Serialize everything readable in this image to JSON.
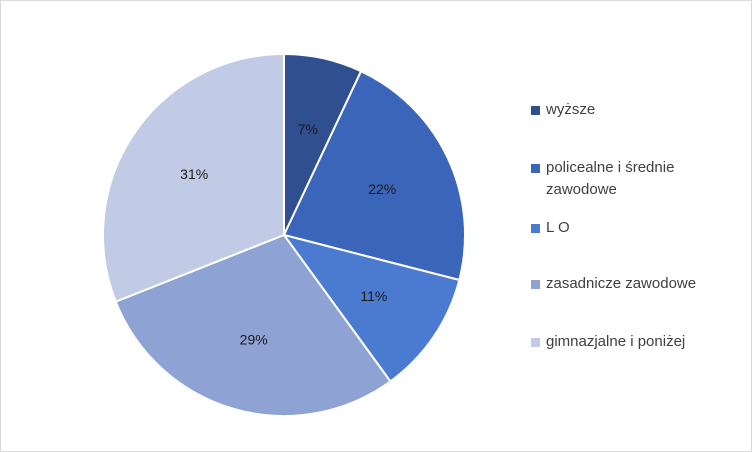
{
  "chart_data": {
    "type": "pie",
    "categories": [
      "wyższe",
      "policealne i średnie zawodowe",
      "L O",
      "zasadnicze zawodowe",
      "gimnazjalne i poniżej"
    ],
    "values": [
      7,
      22,
      11,
      29,
      31
    ],
    "labels": [
      "7%",
      "22%",
      "11%",
      "29%",
      "31%"
    ],
    "colors": [
      "#2f4f8f",
      "#3a65b8",
      "#4a7bd0",
      "#8ea2d4",
      "#c2cbe6"
    ],
    "legend_position": "right",
    "title": ""
  }
}
